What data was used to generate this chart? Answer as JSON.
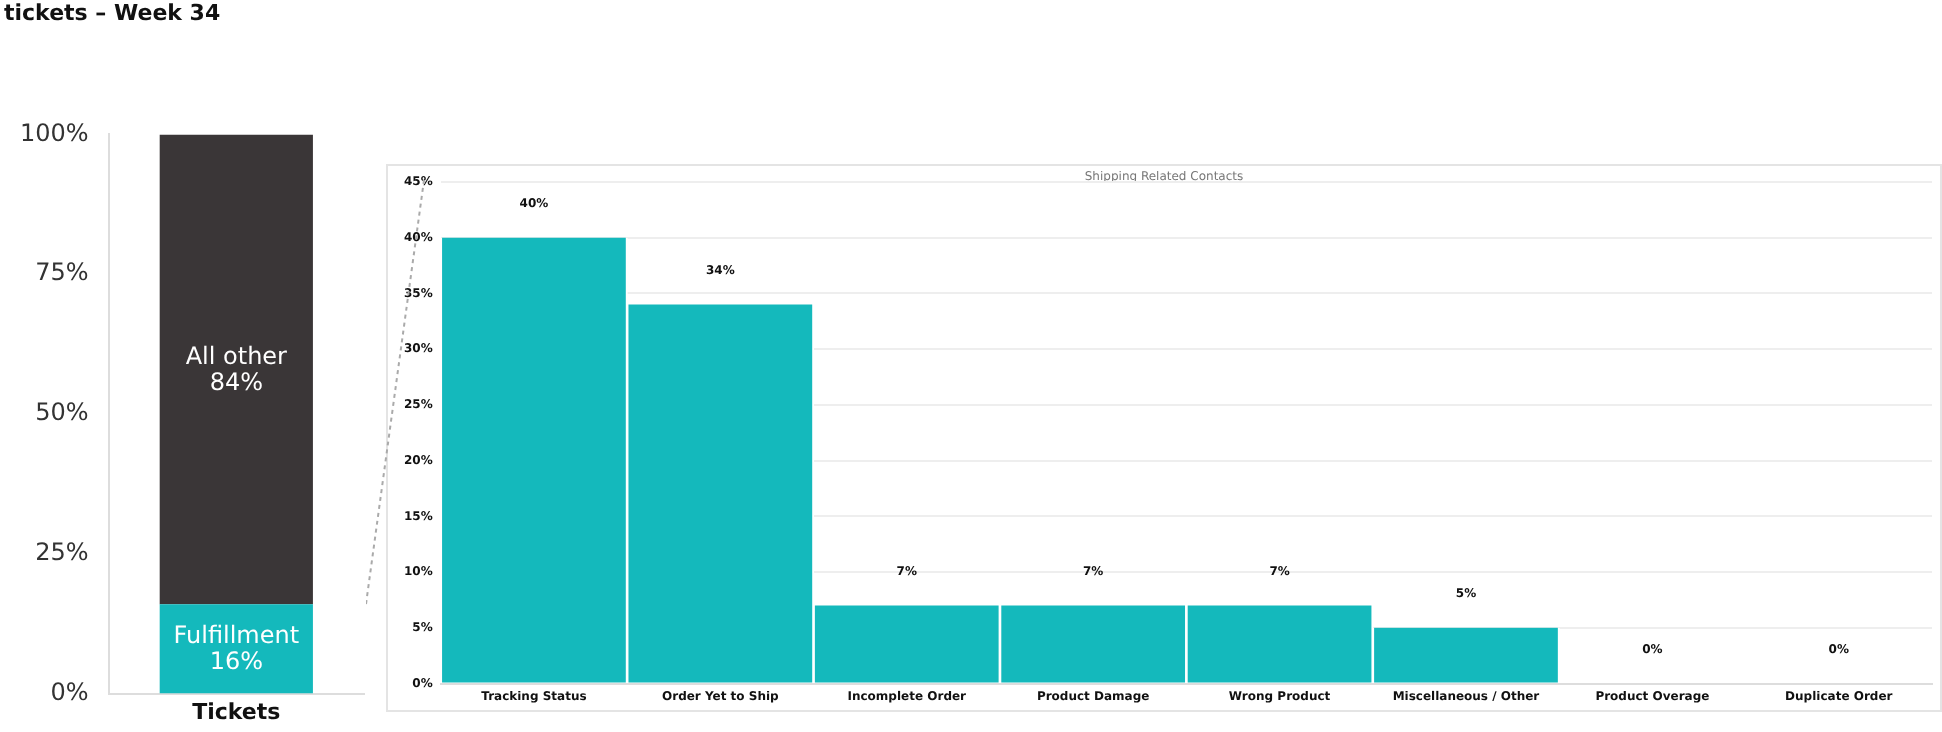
{
  "chart_data": [
    {
      "type": "bar",
      "title": "tickets – Week 34",
      "categories": [
        "Tickets"
      ],
      "stacked": true,
      "series": [
        {
          "name": "Fulfillment",
          "color": "#14b9bc",
          "values": [
            16
          ],
          "value_labels": [
            "16%"
          ]
        },
        {
          "name": "All other",
          "color": "#3a3637",
          "values": [
            84
          ],
          "value_labels": [
            "84%"
          ]
        }
      ],
      "ylim": [
        0,
        100
      ],
      "yticks": [
        {
          "value": 0,
          "label": "0%"
        },
        {
          "value": 25,
          "label": "25%"
        },
        {
          "value": 50,
          "label": "50%"
        },
        {
          "value": 75,
          "label": "75%"
        },
        {
          "value": 100,
          "label": "100%"
        }
      ],
      "grid": false,
      "legend": false
    },
    {
      "type": "bar",
      "title": "Shipping Related Contacts",
      "categories": [
        "Tracking Status",
        "Order Yet to Ship",
        "Incomplete Order",
        "Product Damage",
        "Wrong Product",
        "Miscellaneous / Other",
        "Product Overage",
        "Duplicate Order"
      ],
      "values": [
        40,
        34,
        7,
        7,
        7,
        5,
        0,
        0
      ],
      "color": "#14b9bc",
      "value_labels": [
        "40%",
        "34%",
        "7%",
        "7%",
        "7%",
        "5%",
        "0%",
        "0%"
      ],
      "ylim": [
        0,
        45
      ],
      "yticks": [
        {
          "value": 0,
          "label": "0%"
        },
        {
          "value": 5,
          "label": "5%"
        },
        {
          "value": 10,
          "label": "10%"
        },
        {
          "value": 15,
          "label": "15%"
        },
        {
          "value": 20,
          "label": "20%"
        },
        {
          "value": 25,
          "label": "25%"
        },
        {
          "value": 30,
          "label": "30%"
        },
        {
          "value": 35,
          "label": "35%"
        },
        {
          "value": 40,
          "label": "40%"
        },
        {
          "value": 45,
          "label": "45%"
        }
      ],
      "grid": "y",
      "legend": false
    }
  ]
}
